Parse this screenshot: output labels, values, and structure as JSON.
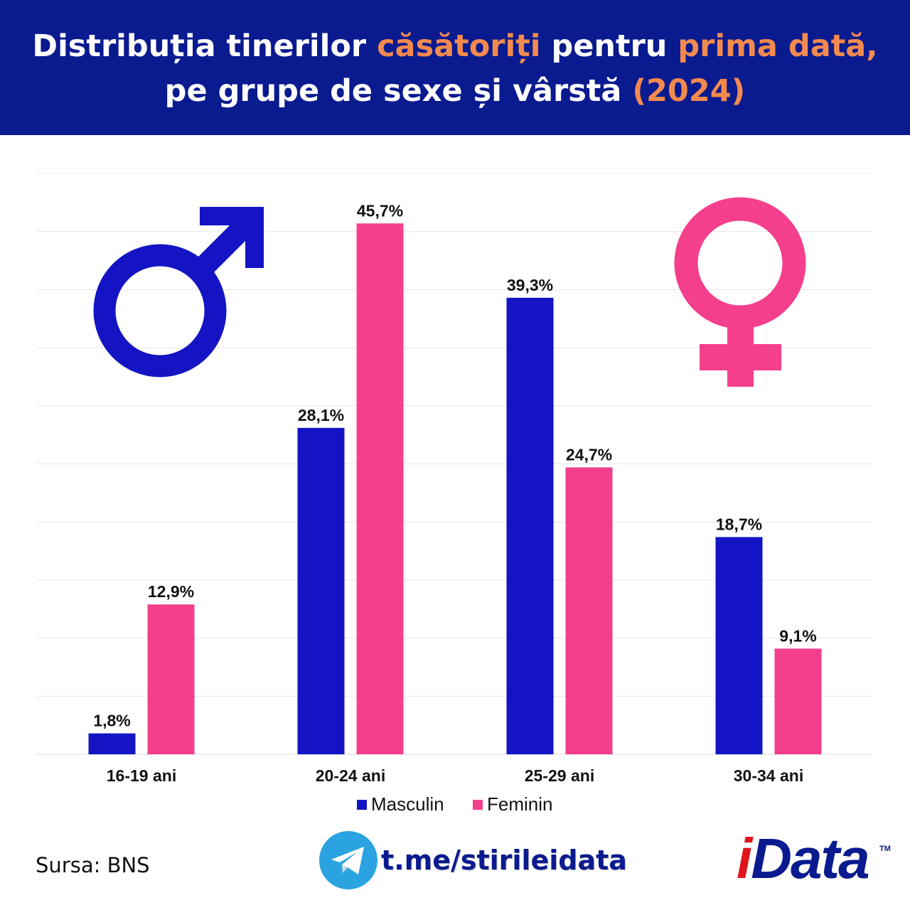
{
  "title": {
    "line1": [
      "Distribuția tinerilor ",
      "căsătoriți",
      " pentru ",
      "prima dată,"
    ],
    "line2": [
      "pe grupe de sexe și vârstă ",
      "(2024)"
    ]
  },
  "colors": {
    "header_bg": "#0a1a8f",
    "highlight": "#f28a4e",
    "masculin": "#1414c4",
    "feminin": "#f43f8c",
    "grid": "#e5e5e5"
  },
  "chart_data": {
    "type": "bar",
    "categories": [
      "16-19 ani",
      "20-24 ani",
      "25-29 ani",
      "30-34 ani"
    ],
    "series": [
      {
        "name": "Masculin",
        "values": [
          1.8,
          28.1,
          39.3,
          18.7
        ],
        "labels": [
          "1,8%",
          "28,1%",
          "39,3%",
          "18,7%"
        ]
      },
      {
        "name": "Feminin",
        "values": [
          12.9,
          45.7,
          24.7,
          9.1
        ],
        "labels": [
          "12,9%",
          "45,7%",
          "24,7%",
          "9,1%"
        ]
      }
    ],
    "ylim": [
      0,
      50
    ],
    "grid": true,
    "legend_position": "bottom-center"
  },
  "icons": {
    "male": "male-symbol-icon",
    "female": "female-symbol-icon",
    "telegram": "telegram-icon"
  },
  "footer": {
    "source": "Sursa: BNS",
    "telegram_link": "t.me/stirileidata",
    "logo_i": "i",
    "logo_rest": "Data",
    "logo_tm": "TM"
  }
}
